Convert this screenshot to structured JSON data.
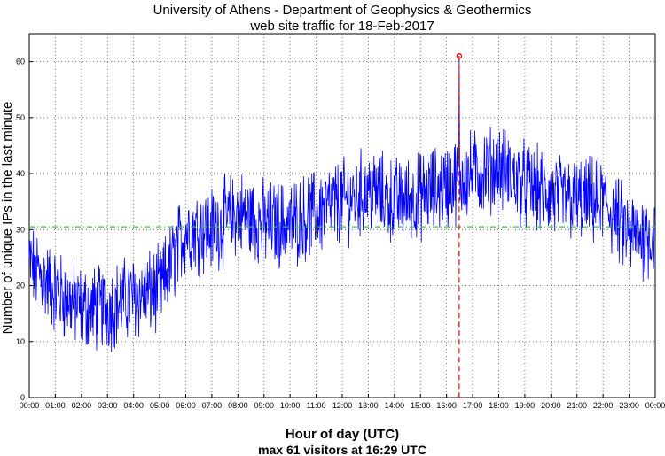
{
  "chart_data": {
    "type": "line",
    "title": "University of Athens - Department of Geophysics & Geothermics",
    "subtitle": "web site traffic for 18-Feb-2017",
    "xlabel": "Hour of day (UTC)",
    "ylabel": "Number of unique IPs in the last minute",
    "caption": "max 61 visitors at 16:29 UTC",
    "x_range": [
      "00:00",
      "24:00"
    ],
    "ylim": [
      0,
      65
    ],
    "y_ticks": [
      0,
      10,
      20,
      30,
      40,
      50,
      60
    ],
    "x_tick_labels": [
      "00:00",
      "01:00",
      "02:00",
      "03:00",
      "04:00",
      "05:00",
      "06:00",
      "07:00",
      "08:00",
      "09:00",
      "10:00",
      "11:00",
      "12:00",
      "13:00",
      "14:00",
      "15:00",
      "16:00",
      "17:00",
      "18:00",
      "19:00",
      "20:00",
      "21:00",
      "22:00",
      "23:00",
      "00:00"
    ],
    "grid": true,
    "series": [
      {
        "color": "#0000ff",
        "sampling": "per minute (mean trend shown as hourly levels; per-minute noise approx ±6)",
        "hour_index": [
          0,
          1,
          2,
          3,
          4,
          5,
          6,
          7,
          8,
          9,
          10,
          11,
          12,
          13,
          14,
          15,
          16,
          17,
          18,
          19,
          20,
          21,
          22,
          23
        ],
        "values": [
          24,
          19,
          16,
          16,
          18,
          19,
          30,
          30,
          33,
          31,
          31,
          33,
          35,
          37,
          35,
          36,
          38,
          40,
          41,
          38,
          36,
          35,
          35,
          29
        ]
      }
    ],
    "mean_line": {
      "value": 30.5,
      "color": "#33cc33",
      "style": "dash-dot"
    },
    "max_marker": {
      "time": "16:29",
      "value": 61,
      "color": "#ff0000"
    }
  }
}
